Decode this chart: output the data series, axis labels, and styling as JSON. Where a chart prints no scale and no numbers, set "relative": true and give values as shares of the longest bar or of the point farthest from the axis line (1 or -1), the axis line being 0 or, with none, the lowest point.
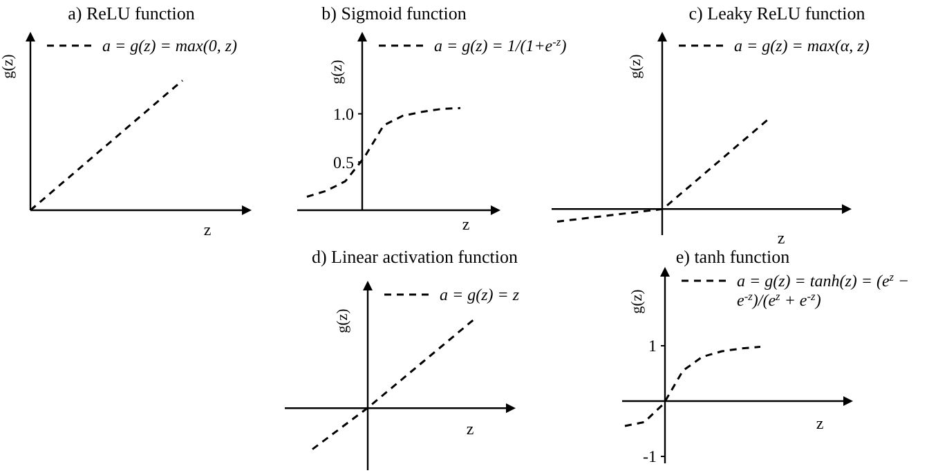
{
  "chart_data": [
    {
      "type": "line",
      "title": "a) ReLU function",
      "xlabel": "z",
      "ylabel": "g(z)",
      "relative": true,
      "categories": [
        null,
        null,
        null,
        null,
        null,
        null
      ],
      "legend": "top",
      "line_style": "dashed",
      "marker": "none",
      "series": [
        {
          "name": "a = g(z) = max(0, z)",
          "color": "#000000",
          "values": [
            0,
            0.2,
            0.4,
            0.6,
            0.8,
            1
          ]
        }
      ]
    },
    {
      "type": "line",
      "title": "b) Sigmoid function",
      "xlabel": "z",
      "ylabel": "g(z)",
      "categories": [
        null,
        null,
        null,
        null,
        null,
        null,
        null,
        null,
        null
      ],
      "ylim": [
        0,
        1.75
      ],
      "yticks": [
        0.5,
        {
          "value": 1,
          "label": "1.0"
        }
      ],
      "legend": "top",
      "line_style": "dashed",
      "marker": "none",
      "series": [
        {
          "name": "a = g(z) = 1/(1+e$^{-z}$)",
          "color": "#000000",
          "values": [
            0.14,
            0.2,
            0.3,
            0.55,
            0.88,
            0.98,
            1.02,
            1.05,
            1.06
          ]
        }
      ]
    },
    {
      "type": "line",
      "title": "c) Leaky ReLU function",
      "xlabel": "z",
      "ylabel": "g(z)",
      "relative": true,
      "categories": [
        null,
        null,
        null,
        null,
        null
      ],
      "legend": "top",
      "line_style": "dashed",
      "marker": "none",
      "series": [
        {
          "name": "a = g(z) = max(α, z)",
          "color": "#000000",
          "values": [
            -0.14,
            -0.07,
            0,
            0.5,
            1
          ]
        }
      ]
    },
    {
      "type": "line",
      "title": "d) Linear activation function",
      "xlabel": "z",
      "ylabel": "g(z)",
      "relative": true,
      "categories": [
        null,
        null,
        null,
        null
      ],
      "legend": "top",
      "line_style": "dashed",
      "marker": "none",
      "series": [
        {
          "name": "a = g(z) = z",
          "color": "#000000",
          "values": [
            -0.45,
            0,
            0.5,
            1
          ]
        }
      ]
    },
    {
      "type": "line",
      "title": "e) tanh function",
      "xlabel": "z",
      "ylabel": "g(z)",
      "categories": [
        null,
        null,
        null,
        null,
        null,
        null,
        null,
        null
      ],
      "ylim": [
        -1.125,
        2.25
      ],
      "yticks": [
        1,
        -1
      ],
      "legend": "top",
      "line_style": "dashed",
      "marker": "none",
      "series": [
        {
          "name": "a = g(z) = tanh(z) = (e$^{z}$ − e$^{-z}$)/(e$^{z}$ + e$^{-z}$)",
          "color": "#000000",
          "values": [
            -0.45,
            -0.38,
            -0.05,
            0.55,
            0.8,
            0.9,
            0.95,
            0.98
          ]
        }
      ]
    }
  ]
}
